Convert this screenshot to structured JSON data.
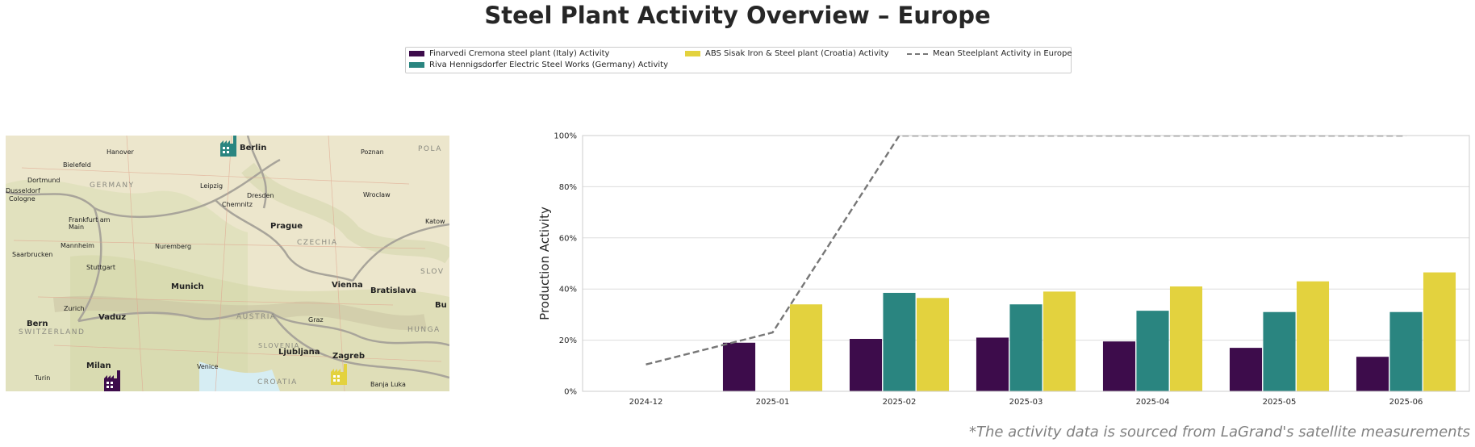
{
  "title": "Steel Plant Activity Overview – Europe",
  "footnote": "*The activity data is sourced from LaGrand's satellite measurements",
  "map": {
    "labels": {
      "berlin": "Berlin",
      "hanover": "Hanover",
      "poznan": "Poznan",
      "pola": "POLA",
      "bielefeld": "Bielefeld",
      "dortmund": "Dortmund",
      "germany": "GERMANY",
      "dusseldorf": "Dusseldorf",
      "cologne": "Cologne",
      "leipzig": "Leipzig",
      "dresden": "Dresden",
      "chemnitz": "Chemnitz",
      "wroclaw": "Wroclaw",
      "katowice": "Katow",
      "frankfurt": "Frankfurt am Main",
      "prague": "Prague",
      "mannheim": "Mannheim",
      "nuremberg": "Nuremberg",
      "czechia": "CZECHIA",
      "saarbrucken": "Saarbrucken",
      "stuttgart": "Stuttgart",
      "slov": "SLOV",
      "munich": "Munich",
      "vienna": "Vienna",
      "bratislava": "Bratislava",
      "zurich": "Zurich",
      "vaduz": "Vaduz",
      "bu": "Bu",
      "bern": "Bern",
      "switzerland": "SWITZERLAND",
      "austria": "AUSTRIA",
      "graz": "Graz",
      "hunga": "HUNGA",
      "slovenia": "SLOVENIA",
      "ljubljana": "Ljubljana",
      "zagreb": "Zagreb",
      "milan": "Milan",
      "venice": "Venice",
      "turin": "Turin",
      "croatia": "CROATIA",
      "banja_luka": "Banja Luka"
    },
    "plants": [
      {
        "icon": "factory-icon",
        "color": "#3d0c4b"
      },
      {
        "icon": "factory-icon",
        "color": "#2a8580"
      },
      {
        "icon": "factory-icon",
        "color": "#e3d23e"
      }
    ]
  },
  "chart_data": {
    "type": "bar",
    "categories": [
      "2024-12",
      "2025-01",
      "2025-02",
      "2025-03",
      "2025-04",
      "2025-05",
      "2025-06"
    ],
    "series": [
      {
        "name": "Finarvedi Cremona steel plant (Italy) Activity",
        "color": "#3d0c4b",
        "values": [
          null,
          19,
          20.5,
          21,
          19.5,
          17,
          13.5
        ]
      },
      {
        "name": "Riva Hennigsdorfer Electric Steel Works (Germany) Activity",
        "color": "#2a8580",
        "values": [
          null,
          null,
          38.5,
          34,
          31.5,
          31,
          31
        ]
      },
      {
        "name": "ABS Sisak Iron & Steel plant (Croatia) Activity",
        "color": "#e3d23e",
        "values": [
          null,
          34,
          36.5,
          39,
          41,
          43,
          46.5
        ]
      }
    ],
    "mean_line": {
      "name": "Mean Steelplant Activity in Europe",
      "color": "#777777",
      "values": [
        10.5,
        23,
        100,
        100,
        100,
        100,
        100
      ]
    },
    "ylabel": "Production Activity",
    "xlabel": "",
    "ylim": [
      0,
      100
    ],
    "yticks": [
      "0%",
      "20%",
      "40%",
      "60%",
      "80%",
      "100%"
    ],
    "grid": "horizontal",
    "legend_position": "top-center"
  }
}
